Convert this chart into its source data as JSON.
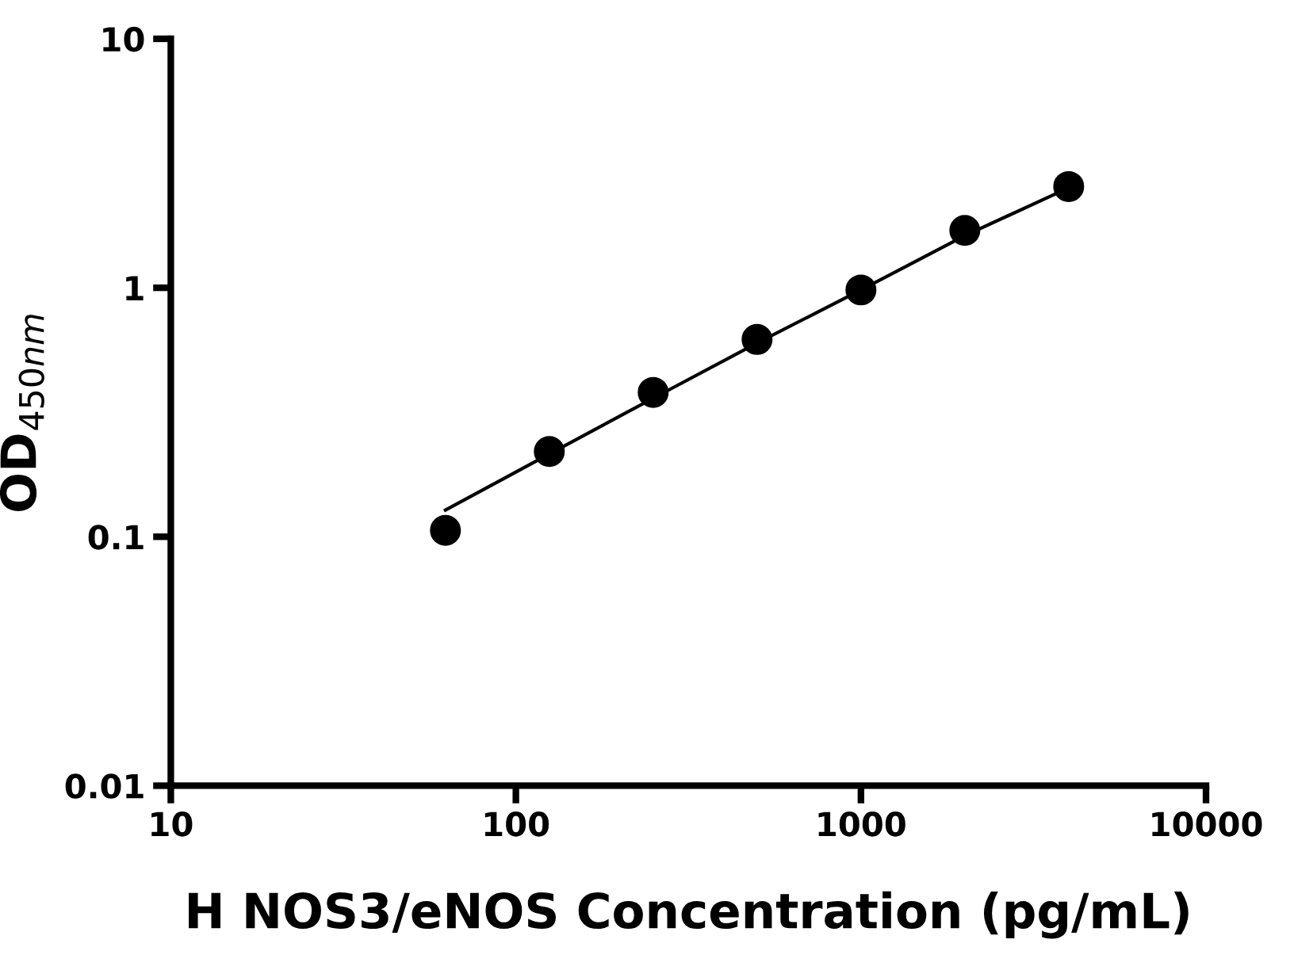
{
  "chart_data": {
    "type": "scatter",
    "xlabel": "H NOS3/eNOS Concentration (pg/mL)",
    "ylabel": "OD$_{450nm}$",
    "log": "xy",
    "xlim": [
      10,
      10000
    ],
    "xticks": [
      10,
      100,
      1000,
      10000
    ],
    "ylim": [
      0.01,
      10
    ],
    "yticks": [
      0.01,
      0.1,
      1,
      10
    ],
    "grid": false,
    "legend": false,
    "series": [
      {
        "color": "#000000",
        "marker": "circle",
        "x": [
          62.5,
          125,
          250,
          500,
          1000,
          2000,
          4000
        ],
        "values": [
          0.106,
          0.22,
          0.38,
          0.62,
          0.98,
          1.7,
          2.55
        ]
      },
      {
        "type": "line",
        "color": "#000000",
        "marker": "none",
        "line_style": "solid",
        "x": [
          62.5,
          125,
          250,
          500,
          1000,
          2000,
          4000
        ],
        "values": [
          0.128,
          0.215,
          0.36,
          0.6,
          0.98,
          1.62,
          2.52
        ]
      }
    ]
  }
}
